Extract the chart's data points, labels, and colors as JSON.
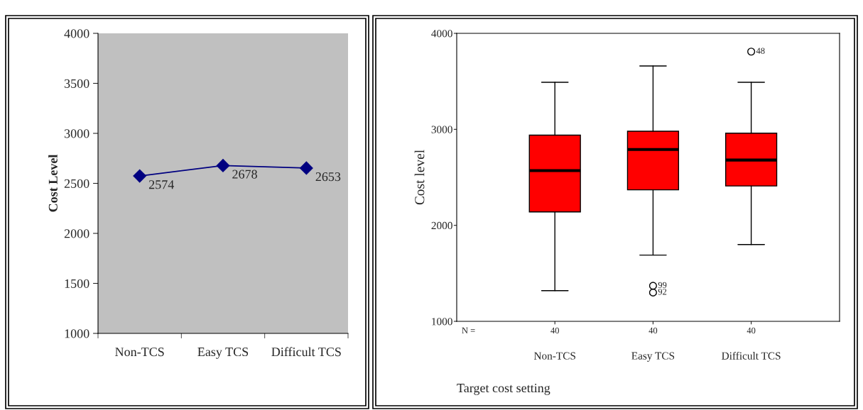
{
  "chart_data": [
    {
      "type": "line",
      "categories": [
        "Non-TCS",
        "Easy TCS",
        "Difficult TCS"
      ],
      "ylabel": "Cost Level",
      "series": [
        {
          "color": "#000080",
          "values": [
            2574,
            2678,
            2653
          ]
        }
      ],
      "ylim": [
        1000,
        4000
      ],
      "yticks": [
        1000,
        1500,
        2000,
        2500,
        3000,
        3500,
        4000
      ],
      "data_labels": true,
      "marker": "diamond",
      "grid": false,
      "legend": false
    },
    {
      "type": "box",
      "categories": [
        "Non-TCS",
        "Easy TCS",
        "Difficult TCS"
      ],
      "ylabel": "Cost level",
      "xlabel": "Target cost setting",
      "series": [
        {
          "color": "#ff0000",
          "boxes": [
            {
              "low": 1320,
              "q1": 2140,
              "median": 2570,
              "q3": 2940,
              "high": 3490
            },
            {
              "low": 1690,
              "q1": 2370,
              "median": 2790,
              "q3": 2980,
              "high": 3660,
              "outliers": [
                1370,
                1300
              ]
            },
            {
              "low": 1800,
              "q1": 2410,
              "median": 2680,
              "q3": 2960,
              "high": 3490,
              "outliers": [
                3810
              ]
            }
          ]
        }
      ],
      "ylim": [
        1000,
        4000
      ],
      "yticks": [
        1000,
        2000,
        3000,
        4000
      ],
      "grid": false,
      "legend": false,
      "annotations": [
        "N =",
        "40",
        "40",
        "40",
        "99",
        "92",
        "48"
      ]
    }
  ]
}
